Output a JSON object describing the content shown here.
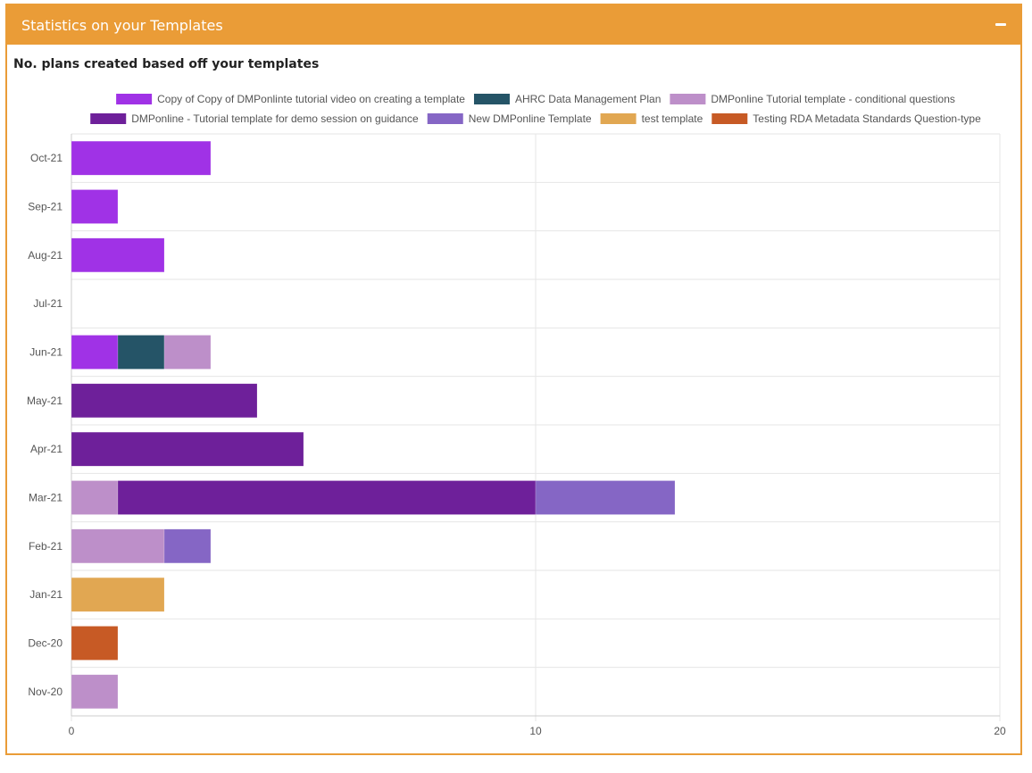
{
  "panel": {
    "title": "Statistics on your Templates",
    "collapse_icon": "minus-icon",
    "colors": {
      "header": "#ea9c37",
      "border": "#ea9c37"
    }
  },
  "chart_heading": "No. plans created based off your templates",
  "chart_data": {
    "type": "bar",
    "orientation": "horizontal",
    "stacked": true,
    "categories": [
      "Oct-21",
      "Sep-21",
      "Aug-21",
      "Jul-21",
      "Jun-21",
      "May-21",
      "Apr-21",
      "Mar-21",
      "Feb-21",
      "Jan-21",
      "Dec-20",
      "Nov-20"
    ],
    "series": [
      {
        "name": "Copy of Copy of DMPonlinte tutorial video on creating a template",
        "color": "#a032e6",
        "values": [
          3,
          1,
          2,
          0,
          1,
          0,
          0,
          0,
          0,
          0,
          0,
          0
        ]
      },
      {
        "name": "AHRC Data Management Plan",
        "color": "#255467",
        "values": [
          0,
          0,
          0,
          0,
          1,
          0,
          0,
          0,
          0,
          0,
          0,
          0
        ]
      },
      {
        "name": "DMPonline Tutorial template - conditional questions",
        "color": "#bd8fc9",
        "values": [
          0,
          0,
          0,
          0,
          1,
          0,
          0,
          1,
          2,
          0,
          0,
          1
        ]
      },
      {
        "name": "DMPonline - Tutorial template for demo session on guidance",
        "color": "#6e209a",
        "values": [
          0,
          0,
          0,
          0,
          0,
          4,
          5,
          9,
          0,
          0,
          0,
          0
        ]
      },
      {
        "name": "New DMPonline Template",
        "color": "#8566c5",
        "values": [
          0,
          0,
          0,
          0,
          0,
          0,
          0,
          3,
          1,
          0,
          0,
          0
        ]
      },
      {
        "name": "test template",
        "color": "#e1a752",
        "values": [
          0,
          0,
          0,
          0,
          0,
          0,
          0,
          0,
          0,
          2,
          0,
          0
        ]
      },
      {
        "name": "Testing RDA Metadata Standards Question-type",
        "color": "#c75a25",
        "values": [
          0,
          0,
          0,
          0,
          0,
          0,
          0,
          0,
          0,
          0,
          1,
          0
        ]
      }
    ],
    "xlim": [
      0,
      20
    ],
    "xticks": [
      "0",
      "10",
      "20"
    ],
    "grid": true,
    "legend_position": "top"
  }
}
